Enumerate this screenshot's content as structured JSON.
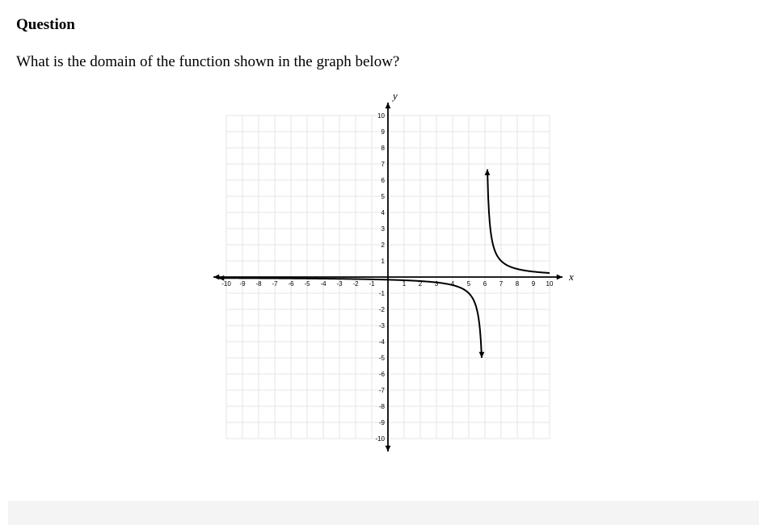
{
  "heading": "Question",
  "prompt": "What is the domain of the function shown in the graph below?",
  "graph": {
    "x_label": "x",
    "y_label": "y",
    "xlim": [
      -10,
      10
    ],
    "ylim": [
      -10,
      10
    ],
    "tick_step": 1,
    "grid_color": "#e5e5e5",
    "axis_color": "#000000",
    "curve_color": "#000000",
    "background_color": "#ffffff",
    "tick_fontsize": 8,
    "label_fontsize": 13,
    "label_font_style": "italic",
    "curve_width": 2,
    "axis_width": 1.8,
    "horizontal_asymptote_y": 0,
    "vertical_asymptote_x": 6,
    "left_branch_start_x": -10,
    "left_branch_end_x": 5.8,
    "right_branch_top_x": 6.5,
    "right_branch_bottom_x": 6.15
  }
}
